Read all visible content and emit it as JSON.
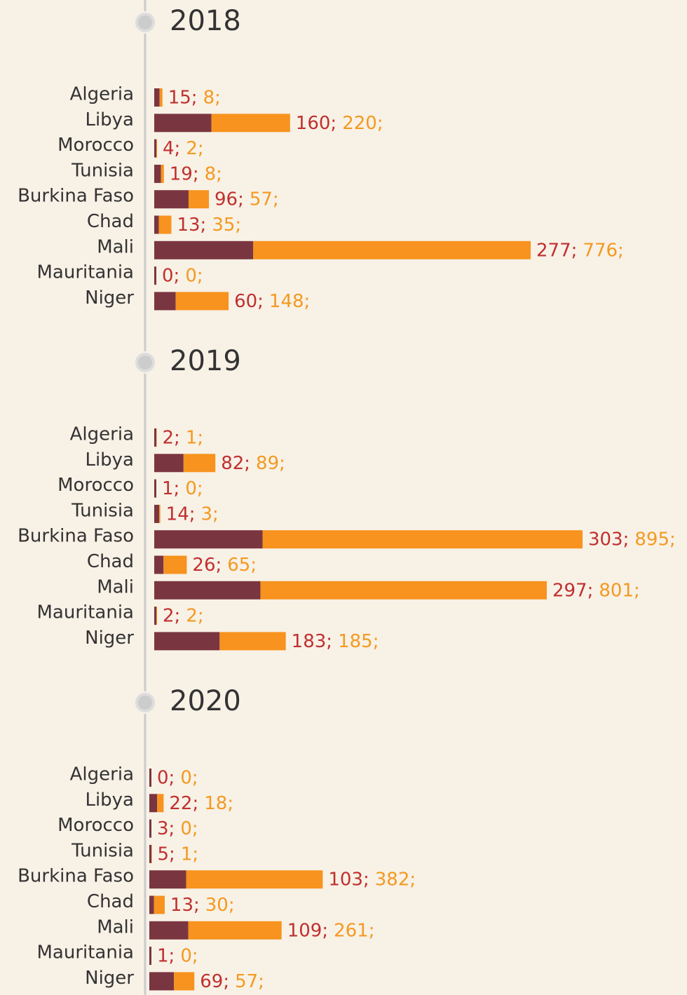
{
  "chart_data": [
    {
      "type": "bar",
      "title": "2018",
      "categories": [
        "Algeria",
        "Libya",
        "Morocco",
        "Tunisia",
        "Burkina Faso",
        "Chad",
        "Mali",
        "Mauritania",
        "Niger"
      ],
      "series": [
        {
          "color": "#7a3640",
          "label_color": "#c0302f",
          "values": [
            15,
            160,
            4,
            19,
            96,
            13,
            277,
            0,
            60
          ],
          "value_labels": [
            "15;",
            "160;",
            "4;",
            "19;",
            "96;",
            "13;",
            "277;",
            "0;",
            "60;"
          ]
        },
        {
          "color": "#f7931e",
          "label_color": "#f39a21",
          "values": [
            8,
            220,
            2,
            8,
            57,
            35,
            776,
            0,
            148
          ],
          "value_labels": [
            "8;",
            "220;",
            "2;",
            "8;",
            "57;",
            "35;",
            "776;",
            "0;",
            "148;"
          ]
        }
      ]
    },
    {
      "type": "bar",
      "title": "2019",
      "categories": [
        "Algeria",
        "Libya",
        "Morocco",
        "Tunisia",
        "Burkina Faso",
        "Chad",
        "Mali",
        "Mauritania",
        "Niger"
      ],
      "series": [
        {
          "color": "#7a3640",
          "label_color": "#c0302f",
          "values": [
            2,
            82,
            1,
            14,
            303,
            26,
            297,
            2,
            183
          ],
          "value_labels": [
            "2;",
            "82;",
            "1;",
            "14;",
            "303;",
            "26;",
            "297;",
            "2;",
            "183;"
          ]
        },
        {
          "color": "#f7931e",
          "label_color": "#f39a21",
          "values": [
            1,
            89,
            0,
            3,
            895,
            65,
            801,
            2,
            185
          ],
          "value_labels": [
            "1;",
            "89;",
            "0;",
            "3;",
            "895;",
            "65;",
            "801;",
            "2;",
            "185;"
          ]
        }
      ]
    },
    {
      "type": "bar",
      "title": "2020",
      "categories": [
        "Algeria",
        "Libya",
        "Morocco",
        "Tunisia",
        "Burkina Faso",
        "Chad",
        "Mali",
        "Mauritania",
        "Niger"
      ],
      "series": [
        {
          "color": "#7a3640",
          "label_color": "#c0302f",
          "values": [
            0,
            22,
            3,
            5,
            103,
            13,
            109,
            1,
            69
          ],
          "value_labels": [
            "0;",
            "22;",
            "3;",
            "5;",
            "103;",
            "13;",
            "109;",
            "1;",
            "69;"
          ]
        },
        {
          "color": "#f7931e",
          "label_color": "#f39a21",
          "values": [
            0,
            18,
            0,
            1,
            382,
            30,
            261,
            0,
            57
          ],
          "value_labels": [
            "0;",
            "18;",
            "0;",
            "1;",
            "382;",
            "30;",
            "261;",
            "0;",
            "57;"
          ]
        }
      ]
    }
  ]
}
